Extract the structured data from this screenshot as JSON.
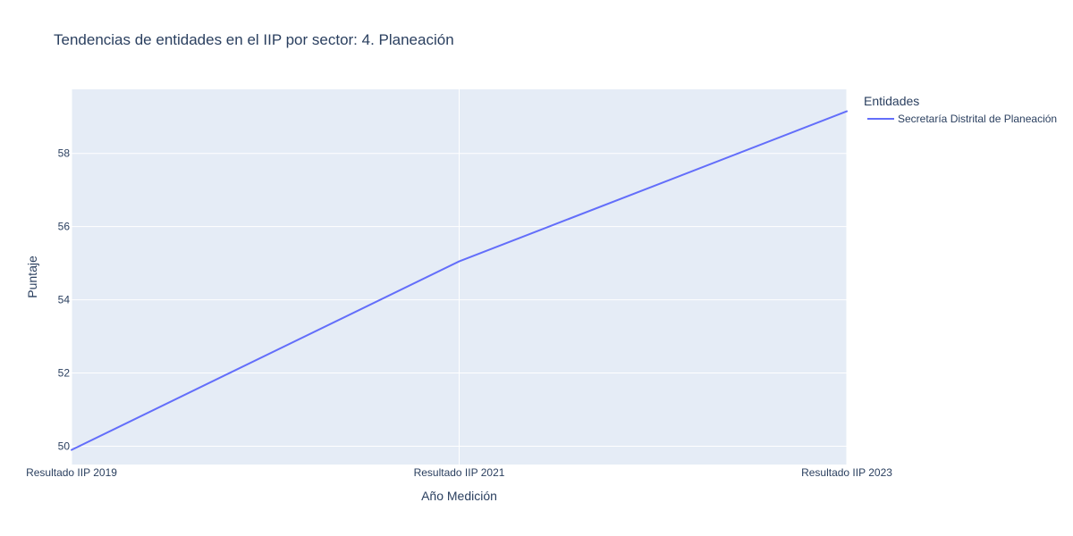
{
  "chart_data": {
    "type": "line",
    "title": "Tendencias de entidades en el IIP por sector: 4. Planeación",
    "xlabel": "Año Medición",
    "ylabel": "Puntaje",
    "categories": [
      "Resultado IIP 2019",
      "Resultado IIP 2021",
      "Resultado IIP 2023"
    ],
    "yticks": [
      50,
      52,
      54,
      56,
      58
    ],
    "ylim": [
      49.5,
      59.75
    ],
    "grid": true,
    "legend": {
      "title": "Entidades",
      "placement": "right"
    },
    "series": [
      {
        "name": "Secretaría Distrital de Planeación",
        "color": "#636efa",
        "values": [
          49.9,
          55.05,
          59.15
        ]
      }
    ]
  },
  "colors": {
    "plot_background": "#e5ecf6",
    "gridline": "#ffffff",
    "text": "#2a3f5f",
    "tick_text": "#2a3f5f"
  }
}
